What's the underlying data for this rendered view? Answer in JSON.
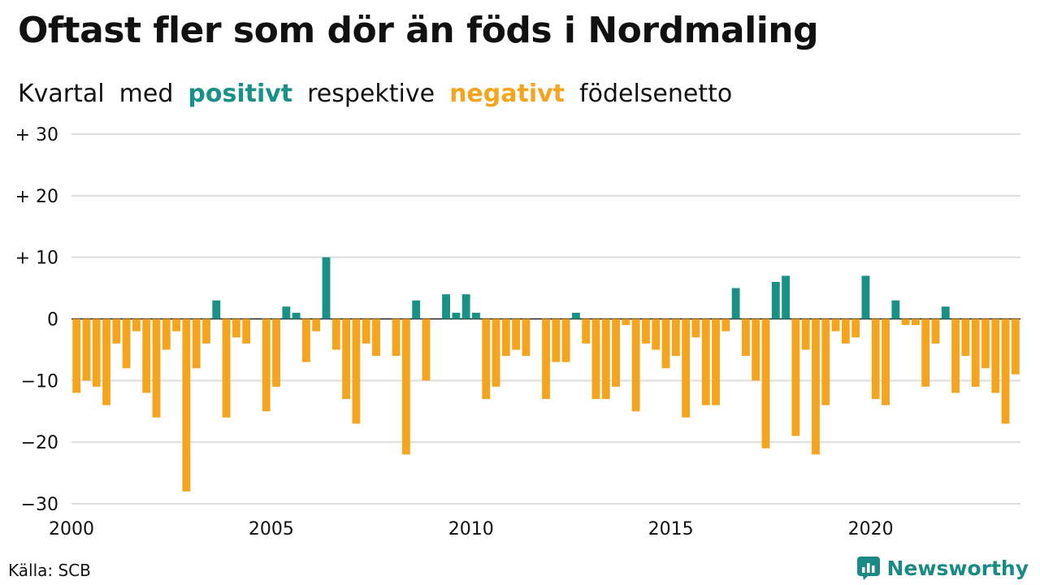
{
  "title": "Oftast fler som dör än föds i Nordmaling",
  "subtitle": {
    "part1": "Kvartal",
    "part2": "med",
    "positive_word": "positivt",
    "part3": "respektive",
    "negative_word": "negativt",
    "part4": "födelsenetto"
  },
  "source": "Källa: SCB",
  "brand": "Newsworthy",
  "colors": {
    "positive": "#1a9187",
    "negative": "#f5a41d",
    "grid": "#dddddd",
    "text": "#111111",
    "brand": "#1b8a85"
  },
  "chart_data": {
    "type": "bar",
    "x_start": "2000 Q1",
    "x_tick_labels": [
      "2000",
      "2005",
      "2010",
      "2015",
      "2020"
    ],
    "y_tick_labels": [
      "+ 30",
      "+ 20",
      "+ 10",
      "0",
      "−10",
      "−20",
      "−30"
    ],
    "y_ticks": [
      30,
      20,
      10,
      0,
      -10,
      -20,
      -30
    ],
    "ylim": [
      -30,
      30
    ],
    "grid": true,
    "values": [
      -12,
      -10,
      -11,
      -14,
      -4,
      -8,
      -2,
      -12,
      -16,
      -5,
      -2,
      -28,
      -8,
      -4,
      3,
      -16,
      -3,
      -4,
      0,
      -15,
      -11,
      2,
      1,
      -7,
      -2,
      10,
      -5,
      -13,
      -17,
      -4,
      -6,
      0,
      -6,
      -22,
      3,
      -10,
      0,
      4,
      1,
      4,
      1,
      -13,
      -11,
      -6,
      -5,
      -6,
      0,
      -13,
      -7,
      -7,
      1,
      -4,
      -13,
      -13,
      -11,
      -1,
      -15,
      -4,
      -5,
      -8,
      -6,
      -16,
      -3,
      -14,
      -14,
      -2,
      5,
      -6,
      -10,
      -21,
      6,
      7,
      -19,
      -5,
      -22,
      -14,
      -2,
      -4,
      -3,
      7,
      -13,
      -14,
      3,
      -1,
      -1,
      -11,
      -4,
      2,
      -12,
      -6,
      -11,
      -8,
      -12,
      -17,
      -9
    ]
  }
}
